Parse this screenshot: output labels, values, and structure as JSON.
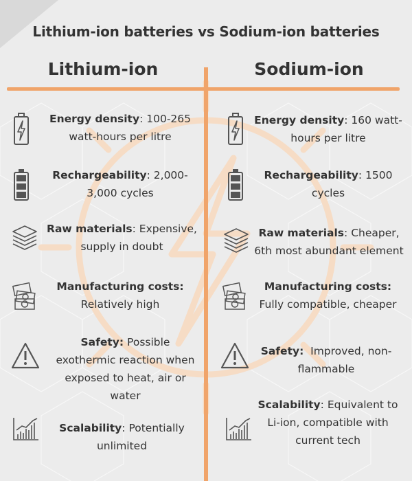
{
  "title": "Lithium-ion batteries vs Sodium-ion batteries",
  "colors": {
    "accent": "#f0a46a",
    "text": "#333333",
    "background": "#ececec"
  },
  "columns": [
    {
      "heading": "Lithium-ion",
      "items": [
        {
          "icon": "battery-bolt-icon",
          "label": "Energy density",
          "sep": ": ",
          "value": "100-265 watt-hours per litre"
        },
        {
          "icon": "battery-full-icon",
          "label": "Rechargeability",
          "sep": ": ",
          "value": "2,000-3,000 cycles"
        },
        {
          "icon": "layers-icon",
          "label": "Raw materials",
          "sep": ": ",
          "value": "Expensive, supply in doubt"
        },
        {
          "icon": "money-icon",
          "label": "Manufacturing costs:",
          "sep": " ",
          "value": "Relatively high"
        },
        {
          "icon": "warning-icon",
          "label": "Safety:",
          "sep": " ",
          "value": "Possible exothermic reaction when exposed to heat, air or water"
        },
        {
          "icon": "growth-chart-icon",
          "label": "Scalability",
          "sep": ": ",
          "value": "Potentially unlimited"
        }
      ]
    },
    {
      "heading": "Sodium-ion",
      "items": [
        {
          "icon": "battery-bolt-icon",
          "label": "Energy density",
          "sep": ": ",
          "value": "160 watt-hours per litre"
        },
        {
          "icon": "battery-full-icon",
          "label": "Rechargeability",
          "sep": ": ",
          "value": "1500 cycles"
        },
        {
          "icon": "layers-icon",
          "label": "Raw materials",
          "sep": ": ",
          "value": "Cheaper, 6th most abundant element"
        },
        {
          "icon": "money-icon",
          "label": "Manufacturing costs:",
          "sep": " ",
          "value": "Fully compatible, cheaper"
        },
        {
          "icon": "warning-icon",
          "label": "Safety:",
          "sep": "  ",
          "value": "Improved, non-flammable"
        },
        {
          "icon": "growth-chart-icon",
          "label": "Scalability",
          "sep": ": ",
          "value": "Equivalent to Li-ion, compatible with current tech"
        }
      ]
    }
  ]
}
